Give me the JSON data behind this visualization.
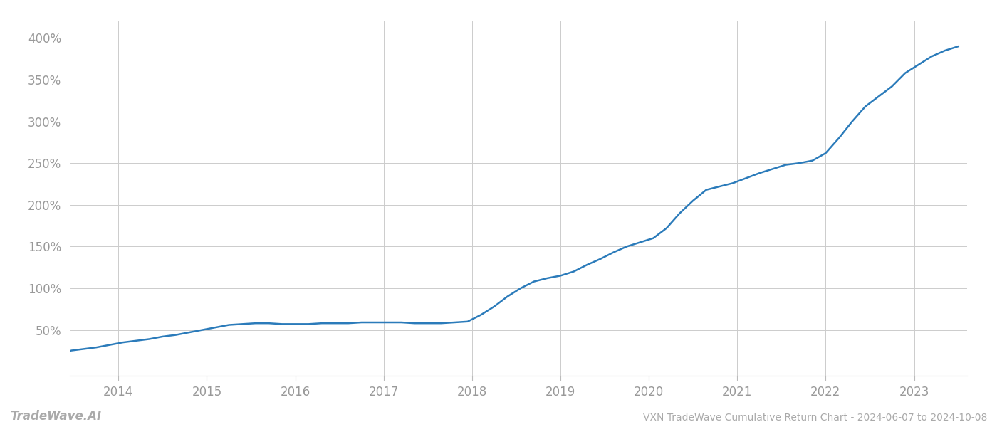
{
  "title": "VXN TradeWave Cumulative Return Chart - 2024-06-07 to 2024-10-08",
  "watermark": "TradeWave.AI",
  "line_color": "#2b7bba",
  "background_color": "#ffffff",
  "grid_color": "#cccccc",
  "x_values": [
    2013.45,
    2013.6,
    2013.75,
    2013.9,
    2014.05,
    2014.2,
    2014.35,
    2014.5,
    2014.65,
    2014.8,
    2014.95,
    2015.1,
    2015.25,
    2015.4,
    2015.55,
    2015.7,
    2015.85,
    2016.0,
    2016.15,
    2016.3,
    2016.45,
    2016.6,
    2016.75,
    2016.9,
    2017.05,
    2017.2,
    2017.35,
    2017.5,
    2017.65,
    2017.8,
    2017.95,
    2018.1,
    2018.25,
    2018.4,
    2018.55,
    2018.7,
    2018.85,
    2019.0,
    2019.15,
    2019.3,
    2019.45,
    2019.6,
    2019.75,
    2019.9,
    2020.05,
    2020.2,
    2020.35,
    2020.5,
    2020.65,
    2020.8,
    2020.95,
    2021.1,
    2021.25,
    2021.4,
    2021.55,
    2021.7,
    2021.85,
    2022.0,
    2022.15,
    2022.3,
    2022.45,
    2022.6,
    2022.75,
    2022.9,
    2023.05,
    2023.2,
    2023.35,
    2023.5
  ],
  "y_values": [
    25,
    27,
    29,
    32,
    35,
    37,
    39,
    42,
    44,
    47,
    50,
    53,
    56,
    57,
    58,
    58,
    57,
    57,
    57,
    58,
    58,
    58,
    59,
    59,
    59,
    59,
    58,
    58,
    58,
    59,
    60,
    68,
    78,
    90,
    100,
    108,
    112,
    115,
    120,
    128,
    135,
    143,
    150,
    155,
    160,
    172,
    190,
    205,
    218,
    222,
    226,
    232,
    238,
    243,
    248,
    250,
    253,
    262,
    280,
    300,
    318,
    330,
    342,
    358,
    368,
    378,
    385,
    390
  ],
  "xlim": [
    2013.45,
    2023.6
  ],
  "ylim": [
    -5,
    420
  ],
  "yticks": [
    50,
    100,
    150,
    200,
    250,
    300,
    350,
    400
  ],
  "ytick_labels": [
    "50%",
    "100%",
    "150%",
    "200%",
    "250%",
    "300%",
    "350%",
    "400%"
  ],
  "xticks": [
    2014,
    2015,
    2016,
    2017,
    2018,
    2019,
    2020,
    2021,
    2022,
    2023
  ],
  "xtick_labels": [
    "2014",
    "2015",
    "2016",
    "2017",
    "2018",
    "2019",
    "2020",
    "2021",
    "2022",
    "2023"
  ],
  "line_width": 1.8,
  "title_fontsize": 10,
  "tick_fontsize": 12,
  "watermark_fontsize": 12
}
